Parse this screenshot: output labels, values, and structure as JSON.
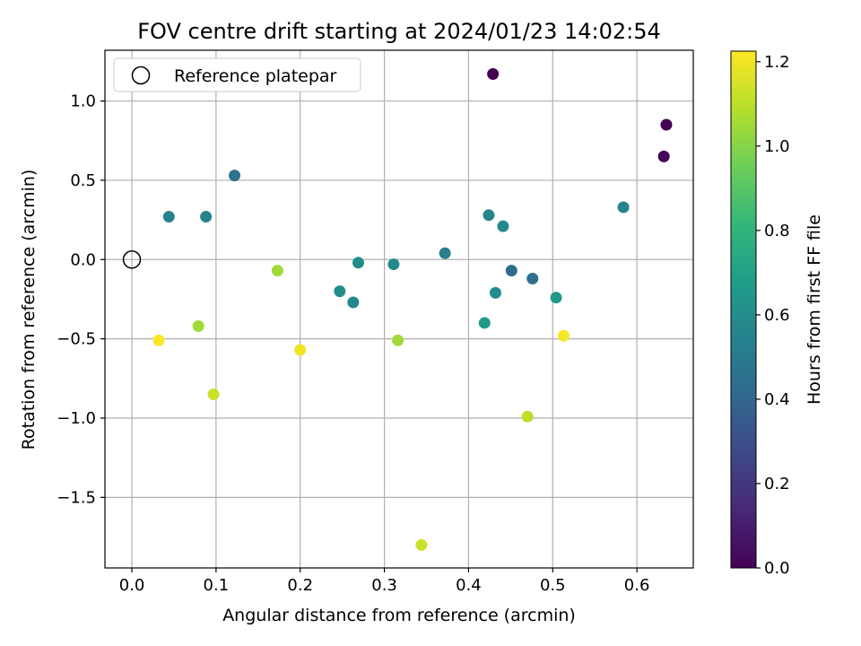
{
  "chart_data": {
    "type": "scatter",
    "title": "FOV centre drift starting at 2024/01/23 14:02:54",
    "xlabel": "Angular distance from reference (arcmin)",
    "ylabel": "Rotation from reference (arcmin)",
    "xlim": [
      -0.032,
      0.667
    ],
    "ylim": [
      -1.945,
      1.32
    ],
    "xticks": [
      0.0,
      0.1,
      0.2,
      0.3,
      0.4,
      0.5,
      0.6
    ],
    "xtick_labels": [
      "0.0",
      "0.1",
      "0.2",
      "0.3",
      "0.4",
      "0.5",
      "0.6"
    ],
    "yticks": [
      -1.5,
      -1.0,
      -0.5,
      0.0,
      0.5,
      1.0
    ],
    "ytick_labels": [
      "−1.5",
      "−1.0",
      "−0.5",
      "0.0",
      "0.5",
      "1.0"
    ],
    "grid": true,
    "legend": {
      "position": "top-left",
      "entries": [
        {
          "label": "Reference platepar",
          "marker": "hollow-circle",
          "x": 0.0,
          "y": 0.0
        }
      ]
    },
    "colorbar": {
      "label": "Hours from first FF file",
      "colormap": "viridis",
      "range": [
        0.0,
        1.225
      ],
      "ticks": [
        0.0,
        0.2,
        0.4,
        0.6,
        0.8,
        1.0,
        1.2
      ],
      "tick_labels": [
        "0.0",
        "0.2",
        "0.4",
        "0.6",
        "0.8",
        "1.0",
        "1.2"
      ]
    },
    "points": [
      {
        "x": 0.429,
        "y": 1.17,
        "c": 0.0
      },
      {
        "x": 0.635,
        "y": 0.85,
        "c": 0.0
      },
      {
        "x": 0.632,
        "y": 0.65,
        "c": 0.02
      },
      {
        "x": 0.122,
        "y": 0.53,
        "c": 0.45
      },
      {
        "x": 0.044,
        "y": 0.27,
        "c": 0.55
      },
      {
        "x": 0.088,
        "y": 0.27,
        "c": 0.55
      },
      {
        "x": 0.424,
        "y": 0.28,
        "c": 0.57
      },
      {
        "x": 0.441,
        "y": 0.21,
        "c": 0.58
      },
      {
        "x": 0.584,
        "y": 0.33,
        "c": 0.55
      },
      {
        "x": 0.372,
        "y": 0.04,
        "c": 0.52
      },
      {
        "x": 0.451,
        "y": -0.07,
        "c": 0.43
      },
      {
        "x": 0.476,
        "y": -0.12,
        "c": 0.45
      },
      {
        "x": 0.269,
        "y": -0.02,
        "c": 0.6
      },
      {
        "x": 0.311,
        "y": -0.03,
        "c": 0.58
      },
      {
        "x": 0.247,
        "y": -0.2,
        "c": 0.6
      },
      {
        "x": 0.263,
        "y": -0.27,
        "c": 0.58
      },
      {
        "x": 0.432,
        "y": -0.21,
        "c": 0.6
      },
      {
        "x": 0.504,
        "y": -0.24,
        "c": 0.65
      },
      {
        "x": 0.419,
        "y": -0.4,
        "c": 0.65
      },
      {
        "x": 0.173,
        "y": -0.07,
        "c": 1.05
      },
      {
        "x": 0.079,
        "y": -0.42,
        "c": 1.05
      },
      {
        "x": 0.316,
        "y": -0.51,
        "c": 1.05
      },
      {
        "x": 0.032,
        "y": -0.51,
        "c": 1.22
      },
      {
        "x": 0.2,
        "y": -0.57,
        "c": 1.2
      },
      {
        "x": 0.513,
        "y": -0.48,
        "c": 1.21
      },
      {
        "x": 0.097,
        "y": -0.85,
        "c": 1.13
      },
      {
        "x": 0.47,
        "y": -0.99,
        "c": 1.1
      },
      {
        "x": 0.344,
        "y": -1.8,
        "c": 1.13
      }
    ]
  }
}
